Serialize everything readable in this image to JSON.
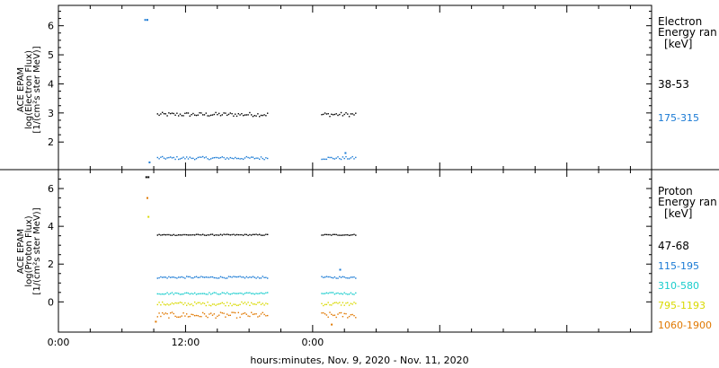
{
  "chart_data": [
    {
      "type": "scatter",
      "panel": "electron",
      "ylabel_lines": [
        "ACE EPAM",
        "log(Electron Flux)",
        "[1/(cm²s ster MeV)]"
      ],
      "legend_title": [
        "Electron",
        "Energy ran"
      ],
      "legend_unit": "[keV]",
      "yticks": [
        "2",
        "3",
        "4",
        "5",
        "6"
      ],
      "ylim": [
        1.05,
        6.7
      ],
      "xlim": [
        0,
        56
      ],
      "series": [
        {
          "name": "38-53",
          "color": "#000000",
          "segments": [
            {
              "x_start": 9.3,
              "x_end": 19.7,
              "mean": 2.95,
              "jitter": 0.07
            },
            {
              "x_start": 24.8,
              "x_end": 28.1,
              "mean": 2.95,
              "jitter": 0.07
            }
          ]
        },
        {
          "name": "175-315",
          "color": "#1a7ad4",
          "segments": [
            {
              "x_start": 9.3,
              "x_end": 19.7,
              "mean": 1.45,
              "jitter": 0.05
            },
            {
              "x_start": 24.8,
              "x_end": 28.1,
              "mean": 1.45,
              "jitter": 0.05
            }
          ],
          "extra_points": [
            [
              8.2,
              6.2
            ],
            [
              8.4,
              6.2
            ],
            [
              8.6,
              1.3
            ],
            [
              27.1,
              1.62
            ]
          ]
        }
      ]
    },
    {
      "type": "scatter",
      "panel": "proton",
      "ylabel_lines": [
        "ACE EPAM",
        "log(Proton Flux)",
        "[1/(cm²s ster MeV)]"
      ],
      "legend_title": [
        "Proton",
        "Energy ran"
      ],
      "legend_unit": "[keV]",
      "yticks": [
        "0",
        "2",
        "4",
        "6"
      ],
      "ylim": [
        -1.6,
        7.0
      ],
      "xlim": [
        0,
        56
      ],
      "xticks": [
        "0:00",
        "12:00",
        "0:00"
      ],
      "xtick_values": [
        0,
        12,
        24
      ],
      "xlabel": "hours:minutes, Nov.  9, 2020 - Nov. 11, 2020",
      "series": [
        {
          "name": "47-68",
          "color": "#000000",
          "segments": [
            {
              "x_start": 9.3,
              "x_end": 19.7,
              "mean": 3.55,
              "jitter": 0.03
            },
            {
              "x_start": 24.8,
              "x_end": 28.1,
              "mean": 3.55,
              "jitter": 0.03
            }
          ],
          "extra_points": [
            [
              8.3,
              6.6
            ],
            [
              8.5,
              6.6
            ]
          ]
        },
        {
          "name": "115-195",
          "color": "#1a7ad4",
          "segments": [
            {
              "x_start": 9.3,
              "x_end": 19.7,
              "mean": 1.3,
              "jitter": 0.05
            },
            {
              "x_start": 24.8,
              "x_end": 28.1,
              "mean": 1.3,
              "jitter": 0.05
            }
          ],
          "extra_points": [
            [
              26.6,
              1.7
            ]
          ]
        },
        {
          "name": "310-580",
          "color": "#19cccc",
          "segments": [
            {
              "x_start": 9.3,
              "x_end": 19.7,
              "mean": 0.45,
              "jitter": 0.05
            },
            {
              "x_start": 24.8,
              "x_end": 28.1,
              "mean": 0.45,
              "jitter": 0.05
            }
          ]
        },
        {
          "name": "795-1193",
          "color": "#d9d900",
          "segments": [
            {
              "x_start": 9.3,
              "x_end": 19.7,
              "mean": -0.1,
              "jitter": 0.1
            },
            {
              "x_start": 24.8,
              "x_end": 28.1,
              "mean": -0.1,
              "jitter": 0.1
            }
          ],
          "extra_points": [
            [
              8.5,
              4.5
            ]
          ]
        },
        {
          "name": "1060-1900",
          "color": "#e07800",
          "segments": [
            {
              "x_start": 9.3,
              "x_end": 19.7,
              "mean": -0.7,
              "jitter": 0.15
            },
            {
              "x_start": 24.8,
              "x_end": 28.1,
              "mean": -0.7,
              "jitter": 0.15
            }
          ],
          "extra_points": [
            [
              8.4,
              5.5
            ],
            [
              9.2,
              -1.05
            ],
            [
              25.8,
              -1.2
            ]
          ]
        }
      ]
    }
  ]
}
